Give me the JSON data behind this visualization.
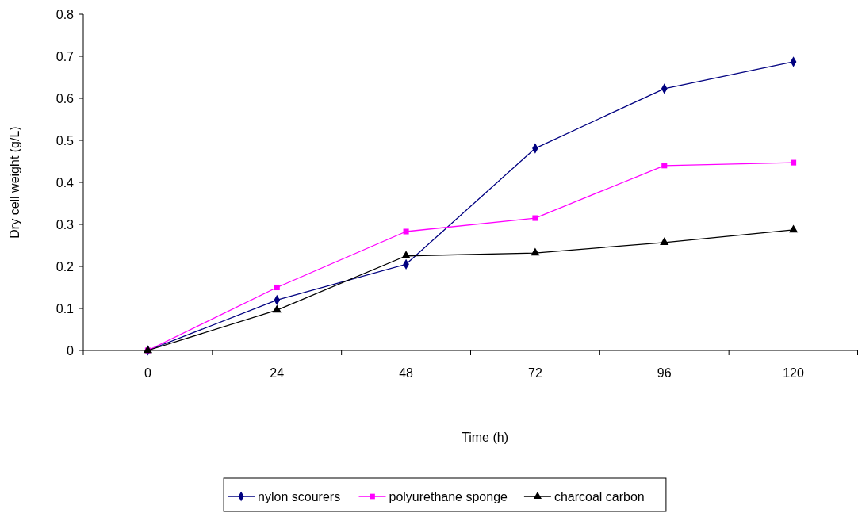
{
  "chart_data": {
    "type": "line",
    "xlabel": "Time (h)",
    "ylabel": "Dry cell weight (g/L)",
    "categories": [
      "0",
      "24",
      "48",
      "72",
      "96",
      "120"
    ],
    "ylim": [
      0,
      0.8
    ],
    "yticks": [
      0,
      0.1,
      0.2,
      0.3,
      0.4,
      0.5,
      0.6,
      0.7,
      0.8
    ],
    "grid": false,
    "legend": "bottom",
    "series": [
      {
        "name": "nylon scourers",
        "color": "#000080",
        "marker": "diamond",
        "values": [
          0,
          0.12,
          0.205,
          0.481,
          0.623,
          0.687
        ]
      },
      {
        "name": "polyurethane sponge",
        "color": "#ff00ff",
        "marker": "square",
        "values": [
          0,
          0.15,
          0.283,
          0.315,
          0.44,
          0.447
        ]
      },
      {
        "name": "charcoal carbon",
        "color": "#000000",
        "marker": "triangle",
        "values": [
          0,
          0.096,
          0.225,
          0.232,
          0.257,
          0.287
        ]
      }
    ]
  }
}
